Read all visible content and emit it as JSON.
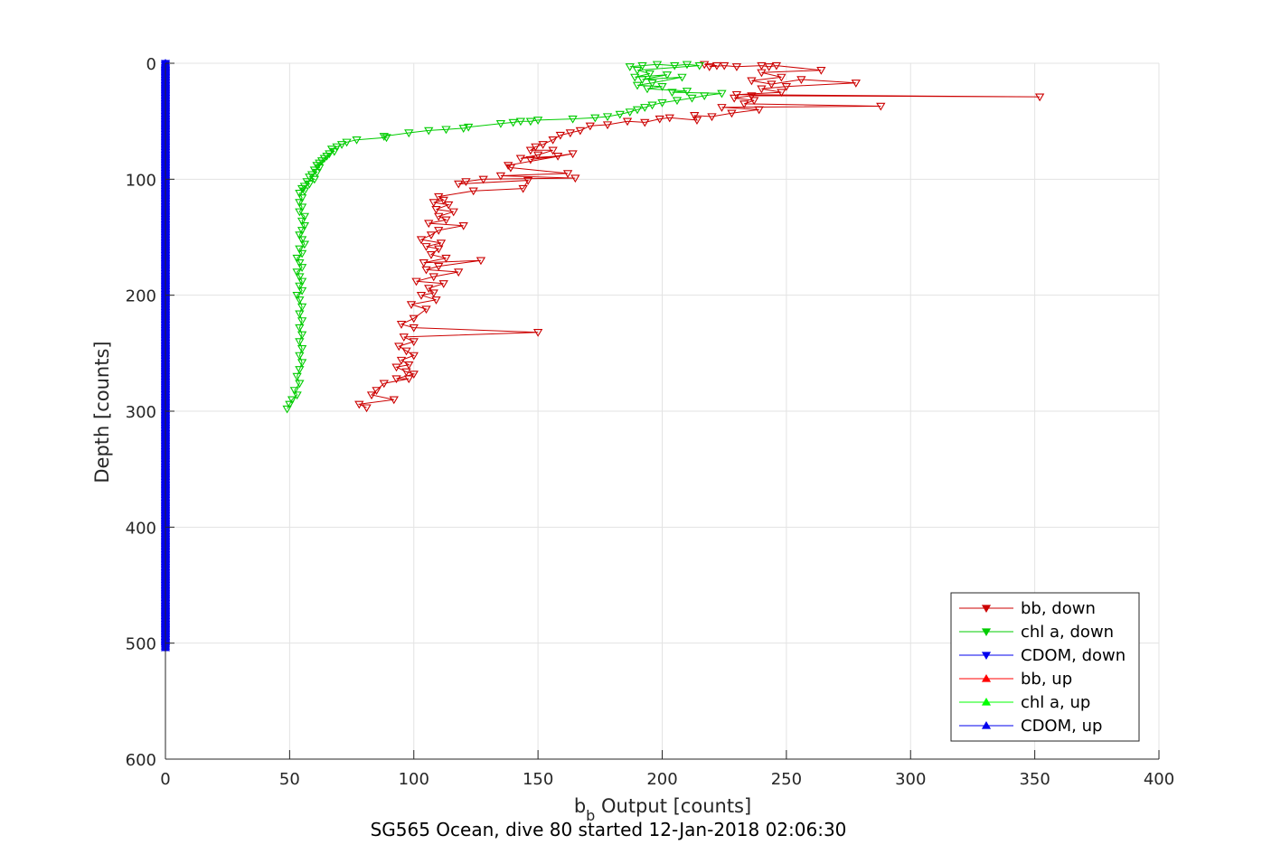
{
  "chart_data": {
    "type": "scatter",
    "xlabel_base": "b",
    "xlabel_sub": "b",
    "xlabel_rest": " Output [counts]",
    "ylabel": "Depth [counts]",
    "subtitle": "SG565 Ocean, dive 80 started 12-Jan-2018 02:06:30",
    "xlim": [
      0,
      400
    ],
    "ylim": [
      0,
      600
    ],
    "y_reversed": true,
    "grid": true,
    "legend_position": "bottom-right",
    "x_ticks": [
      0,
      50,
      100,
      150,
      200,
      250,
      300,
      350,
      400
    ],
    "y_ticks": [
      0,
      100,
      200,
      300,
      400,
      500,
      600
    ],
    "series": [
      {
        "name": "bb, down",
        "color": "#cc0000",
        "marker": "triangle-down",
        "connected": true,
        "points": [
          [
            217,
            1
          ],
          [
            222,
            2
          ],
          [
            219,
            3
          ],
          [
            225,
            2
          ],
          [
            230,
            3
          ],
          [
            240,
            2
          ],
          [
            243,
            3
          ],
          [
            246,
            2
          ],
          [
            264,
            6
          ],
          [
            240,
            8
          ],
          [
            248,
            12
          ],
          [
            236,
            15
          ],
          [
            244,
            18
          ],
          [
            256,
            14
          ],
          [
            278,
            17
          ],
          [
            250,
            20
          ],
          [
            240,
            22
          ],
          [
            248,
            25
          ],
          [
            230,
            27
          ],
          [
            352,
            29
          ],
          [
            236,
            28
          ],
          [
            229,
            30
          ],
          [
            237,
            32
          ],
          [
            233,
            35
          ],
          [
            288,
            37
          ],
          [
            224,
            38
          ],
          [
            239,
            40
          ],
          [
            228,
            43
          ],
          [
            220,
            46
          ],
          [
            213,
            45
          ],
          [
            214,
            49
          ],
          [
            203,
            47
          ],
          [
            199,
            48
          ],
          [
            193,
            51
          ],
          [
            186,
            50
          ],
          [
            178,
            53
          ],
          [
            171,
            54
          ],
          [
            167,
            58
          ],
          [
            163,
            60
          ],
          [
            159,
            62
          ],
          [
            156,
            66
          ],
          [
            152,
            70
          ],
          [
            149,
            72
          ],
          [
            147,
            75
          ],
          [
            156,
            75
          ],
          [
            150,
            79
          ],
          [
            143,
            82
          ],
          [
            158,
            80
          ],
          [
            147,
            83
          ],
          [
            164,
            78
          ],
          [
            138,
            88
          ],
          [
            139,
            90
          ],
          [
            162,
            95
          ],
          [
            135,
            97
          ],
          [
            165,
            99
          ],
          [
            128,
            100
          ],
          [
            121,
            102
          ],
          [
            118,
            104
          ],
          [
            146,
            101
          ],
          [
            144,
            108
          ],
          [
            124,
            110
          ],
          [
            110,
            115
          ],
          [
            112,
            118
          ],
          [
            108,
            120
          ],
          [
            114,
            122
          ],
          [
            109,
            126
          ],
          [
            116,
            128
          ],
          [
            110,
            132
          ],
          [
            113,
            135
          ],
          [
            106,
            138
          ],
          [
            120,
            140
          ],
          [
            110,
            144
          ],
          [
            107,
            148
          ],
          [
            103,
            152
          ],
          [
            111,
            155
          ],
          [
            105,
            158
          ],
          [
            110,
            160
          ],
          [
            107,
            165
          ],
          [
            113,
            168
          ],
          [
            104,
            172
          ],
          [
            127,
            170
          ],
          [
            110,
            175
          ],
          [
            105,
            178
          ],
          [
            118,
            180
          ],
          [
            108,
            184
          ],
          [
            101,
            188
          ],
          [
            112,
            190
          ],
          [
            106,
            194
          ],
          [
            108,
            198
          ],
          [
            103,
            200
          ],
          [
            109,
            204
          ],
          [
            99,
            208
          ],
          [
            105,
            212
          ],
          [
            100,
            220
          ],
          [
            95,
            225
          ],
          [
            100,
            228
          ],
          [
            150,
            232
          ],
          [
            96,
            236
          ],
          [
            100,
            240
          ],
          [
            94,
            244
          ],
          [
            97,
            248
          ],
          [
            100,
            252
          ],
          [
            95,
            256
          ],
          [
            98,
            260
          ],
          [
            93,
            262
          ],
          [
            97,
            266
          ],
          [
            100,
            268
          ],
          [
            93,
            272
          ],
          [
            98,
            272
          ],
          [
            88,
            276
          ],
          [
            85,
            282
          ],
          [
            83,
            286
          ],
          [
            92,
            290
          ],
          [
            78,
            294
          ],
          [
            81,
            297
          ]
        ]
      },
      {
        "name": "chl a, down",
        "color": "#00cc00",
        "marker": "triangle-down",
        "connected": true,
        "points": [
          [
            187,
            3
          ],
          [
            192,
            2
          ],
          [
            198,
            1
          ],
          [
            205,
            2
          ],
          [
            210,
            1
          ],
          [
            215,
            2
          ],
          [
            190,
            6
          ],
          [
            195,
            9
          ],
          [
            189,
            12
          ],
          [
            202,
            10
          ],
          [
            192,
            14
          ],
          [
            208,
            12
          ],
          [
            196,
            17
          ],
          [
            190,
            19
          ],
          [
            200,
            20
          ],
          [
            194,
            22
          ],
          [
            210,
            24
          ],
          [
            204,
            25
          ],
          [
            224,
            26
          ],
          [
            217,
            28
          ],
          [
            212,
            30
          ],
          [
            206,
            32
          ],
          [
            200,
            34
          ],
          [
            196,
            36
          ],
          [
            193,
            38
          ],
          [
            190,
            40
          ],
          [
            187,
            42
          ],
          [
            183,
            44
          ],
          [
            178,
            46
          ],
          [
            173,
            47
          ],
          [
            164,
            48
          ],
          [
            150,
            49
          ],
          [
            147,
            50
          ],
          [
            143,
            50
          ],
          [
            140,
            51
          ],
          [
            135,
            52
          ],
          [
            122,
            55
          ],
          [
            120,
            56
          ],
          [
            113,
            57
          ],
          [
            106,
            58
          ],
          [
            98,
            60
          ],
          [
            88,
            63
          ],
          [
            89,
            64
          ],
          [
            77,
            66
          ],
          [
            73,
            68
          ],
          [
            71,
            70
          ],
          [
            69,
            72
          ],
          [
            67,
            74
          ],
          [
            68,
            76
          ],
          [
            66,
            78
          ],
          [
            65,
            80
          ],
          [
            64,
            82
          ],
          [
            63,
            84
          ],
          [
            62,
            86
          ],
          [
            61,
            88
          ],
          [
            62,
            90
          ],
          [
            60,
            92
          ],
          [
            61,
            94
          ],
          [
            59,
            96
          ],
          [
            58,
            98
          ],
          [
            60,
            100
          ],
          [
            57,
            102
          ],
          [
            58,
            104
          ],
          [
            56,
            106
          ],
          [
            55,
            108
          ],
          [
            56,
            110
          ],
          [
            54,
            112
          ],
          [
            55,
            116
          ],
          [
            54,
            120
          ],
          [
            55,
            124
          ],
          [
            54,
            128
          ],
          [
            56,
            132
          ],
          [
            55,
            136
          ],
          [
            56,
            140
          ],
          [
            55,
            144
          ],
          [
            54,
            148
          ],
          [
            55,
            152
          ],
          [
            56,
            156
          ],
          [
            54,
            160
          ],
          [
            55,
            164
          ],
          [
            53,
            168
          ],
          [
            54,
            172
          ],
          [
            55,
            176
          ],
          [
            53,
            180
          ],
          [
            54,
            184
          ],
          [
            55,
            188
          ],
          [
            54,
            192
          ],
          [
            55,
            196
          ],
          [
            53,
            200
          ],
          [
            54,
            204
          ],
          [
            55,
            210
          ],
          [
            54,
            216
          ],
          [
            55,
            222
          ],
          [
            54,
            228
          ],
          [
            55,
            234
          ],
          [
            54,
            240
          ],
          [
            55,
            246
          ],
          [
            54,
            252
          ],
          [
            55,
            258
          ],
          [
            54,
            264
          ],
          [
            53,
            270
          ],
          [
            54,
            276
          ],
          [
            52,
            282
          ],
          [
            53,
            286
          ],
          [
            51,
            290
          ],
          [
            50,
            294
          ],
          [
            49,
            298
          ]
        ]
      },
      {
        "name": "CDOM, down",
        "color": "#0000ee",
        "marker": "triangle-down",
        "connected": true,
        "constant_x": 0,
        "y_range": [
          0,
          504
        ]
      },
      {
        "name": "bb, up",
        "color": "#ff0000",
        "marker": "triangle-up",
        "connected": true,
        "points": []
      },
      {
        "name": "chl a, up",
        "color": "#00ff00",
        "marker": "triangle-up",
        "connected": true,
        "points": []
      },
      {
        "name": "CDOM, up",
        "color": "#0000ee",
        "marker": "triangle-up",
        "connected": true,
        "constant_x": 0,
        "y_range": [
          0,
          504
        ]
      }
    ]
  }
}
